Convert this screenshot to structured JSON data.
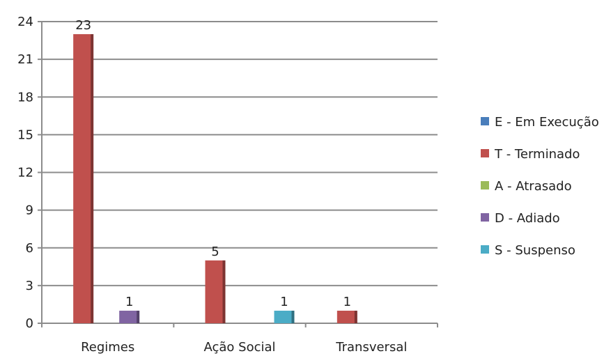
{
  "chart_data": {
    "type": "bar",
    "categories": [
      "Regimes",
      "Ação Social",
      "Transversal"
    ],
    "series": [
      {
        "name": "E - Em Execução",
        "color": "#4a7ebb",
        "values": [
          0,
          0,
          0
        ]
      },
      {
        "name": "T - Terminado",
        "color": "#c0504d",
        "values": [
          23,
          5,
          1
        ]
      },
      {
        "name": "A - Atrasado",
        "color": "#9bbb59",
        "values": [
          0,
          0,
          0
        ]
      },
      {
        "name": "D - Adiado",
        "color": "#8064a2",
        "values": [
          1,
          0,
          0
        ]
      },
      {
        "name": "S - Suspenso",
        "color": "#4bacc6",
        "values": [
          0,
          1,
          0
        ]
      }
    ],
    "data_labels": [
      {
        "series": 1,
        "category": 0,
        "text": "23"
      },
      {
        "series": 3,
        "category": 0,
        "text": "1"
      },
      {
        "series": 1,
        "category": 1,
        "text": "5"
      },
      {
        "series": 4,
        "category": 1,
        "text": "1"
      },
      {
        "series": 1,
        "category": 2,
        "text": "1"
      }
    ],
    "ylim": [
      0,
      24
    ],
    "yticks": [
      0,
      3,
      6,
      9,
      12,
      15,
      18,
      21,
      24
    ],
    "grid": true,
    "legend_position": "right"
  }
}
